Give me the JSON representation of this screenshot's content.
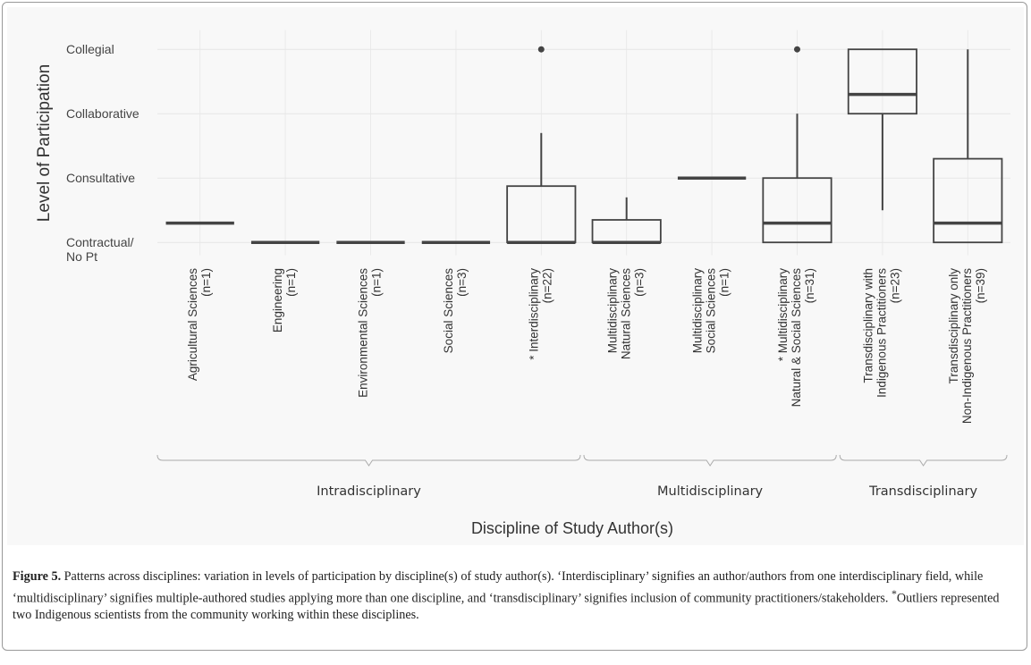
{
  "chart_data": {
    "type": "box",
    "ylabel": "Level of Participation",
    "xlabel": "Discipline of Study Author(s)",
    "ylim": [
      -0.2,
      3.3
    ],
    "yticks": [
      {
        "value": 0,
        "label": "Contractual/\nNo Pt"
      },
      {
        "value": 1,
        "label": "Consultative"
      },
      {
        "value": 2,
        "label": "Collaborative"
      },
      {
        "value": 3,
        "label": "Collegial"
      }
    ],
    "grid": true,
    "color": "#444444",
    "categories": [
      [
        "Agricultural Sciences",
        "(n=1)"
      ],
      [
        "Engineering",
        "(n=1)"
      ],
      [
        "Environmental Sciences",
        "(n=1)"
      ],
      [
        "Social Sciences",
        "(n=3)"
      ],
      [
        "* Interdisciplinary",
        "(n=22)"
      ],
      [
        "Multidisciplinary",
        "Natural Sciences",
        "(n=3)"
      ],
      [
        "Multidisciplinary",
        "Social Sciences",
        "(n=1)"
      ],
      [
        "* Multidisciplinary",
        "Natural & Social Sciences",
        "(n=31)"
      ],
      [
        "Transdisciplinary with",
        "Indigenous Practitioners",
        "(n=23)"
      ],
      [
        "Transdisciplinary only",
        "Non-Indigenous Practitioners",
        "(n=39)"
      ]
    ],
    "boxes": [
      {
        "min": 0.3,
        "q1": 0.3,
        "median": 0.3,
        "q3": 0.3,
        "max": 0.3,
        "outliers": []
      },
      {
        "min": 0,
        "q1": 0,
        "median": 0,
        "q3": 0,
        "max": 0,
        "outliers": []
      },
      {
        "min": 0,
        "q1": 0,
        "median": 0,
        "q3": 0,
        "max": 0,
        "outliers": []
      },
      {
        "min": 0,
        "q1": 0,
        "median": 0,
        "q3": 0,
        "max": 0,
        "outliers": []
      },
      {
        "min": 0,
        "q1": 0,
        "median": 0,
        "q3": 0.875,
        "max": 1.7,
        "outliers": [
          3
        ]
      },
      {
        "min": 0,
        "q1": 0,
        "median": 0,
        "q3": 0.35,
        "max": 0.7,
        "outliers": []
      },
      {
        "min": 1,
        "q1": 1,
        "median": 1,
        "q3": 1,
        "max": 1,
        "outliers": []
      },
      {
        "min": 0,
        "q1": 0,
        "median": 0.3,
        "q3": 1,
        "max": 2,
        "outliers": [
          3
        ]
      },
      {
        "min": 0.5,
        "q1": 2,
        "median": 2.3,
        "q3": 3,
        "max": 3,
        "outliers": []
      },
      {
        "min": 0,
        "q1": 0,
        "median": 0.3,
        "q3": 1.3,
        "max": 3,
        "outliers": []
      }
    ],
    "groups": [
      {
        "label": "Intradisciplinary",
        "size": 5
      },
      {
        "label": "Multidisciplinary",
        "size": 3
      },
      {
        "label": "Transdisciplinary",
        "size": 2
      }
    ]
  },
  "caption": {
    "label": "Figure 5.",
    "text": " Patterns across disciplines: variation in levels of participation by discipline(s) of study author(s). ‘Interdisciplinary’ signifies an author/authors from one interdisciplinary field, while ‘multidisciplinary’ signifies multiple-authored studies applying more than one discipline, and ‘transdisciplinary’ signifies inclusion of community practitioners/stakeholders. ",
    "mark": "*",
    "note": "Outliers represented two Indigenous scientists from the community working within these disciplines."
  }
}
